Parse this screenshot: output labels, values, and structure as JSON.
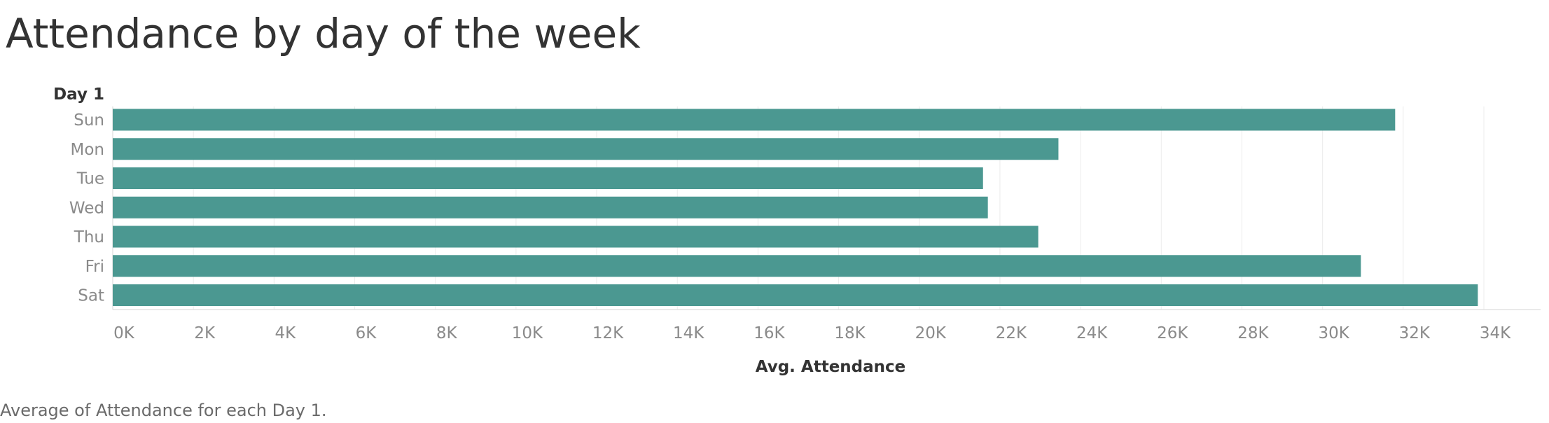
{
  "title": "Attendance by day of the week",
  "caption": "Average of Attendance for each Day 1.",
  "colors": {
    "bar": "#4b9891",
    "grid": "#ececec",
    "axis": "#d6d6d6"
  },
  "chart_data": {
    "type": "bar",
    "orientation": "horizontal",
    "dimension_label": "Day 1",
    "xlabel": "Avg. Attendance",
    "categories": [
      "Sun",
      "Mon",
      "Tue",
      "Wed",
      "Thu",
      "Fri",
      "Sat"
    ],
    "values": [
      31800,
      23450,
      21580,
      21700,
      22950,
      30950,
      33850
    ],
    "xlim": [
      0,
      34500
    ],
    "ticks": [
      0,
      2000,
      4000,
      6000,
      8000,
      10000,
      12000,
      14000,
      16000,
      18000,
      20000,
      22000,
      24000,
      26000,
      28000,
      30000,
      32000,
      34000
    ],
    "tick_labels": [
      "0K",
      "2K",
      "4K",
      "6K",
      "8K",
      "10K",
      "12K",
      "14K",
      "16K",
      "18K",
      "20K",
      "22K",
      "24K",
      "26K",
      "28K",
      "30K",
      "32K",
      "34K"
    ],
    "grid": true
  }
}
